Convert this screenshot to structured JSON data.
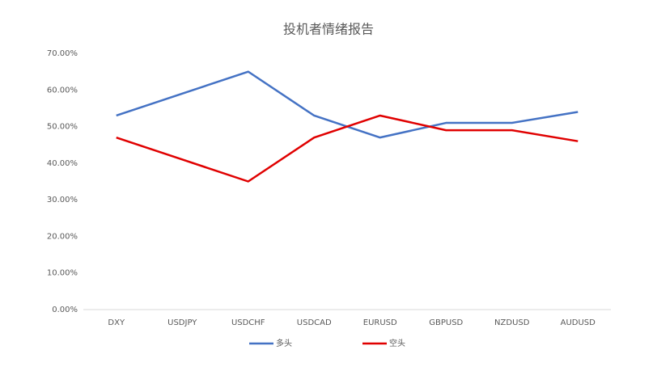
{
  "chart_data": {
    "type": "line",
    "title": "投机者情绪报告",
    "categories": [
      "DXY",
      "USDJPY",
      "USDCHF",
      "USDCAD",
      "EURUSD",
      "GBPUSD",
      "NZDUSD",
      "AUDUSD"
    ],
    "series": [
      {
        "name": "多头",
        "color": "#4472c4",
        "values": [
          53,
          59,
          65,
          53,
          47,
          51,
          51,
          54
        ]
      },
      {
        "name": "空头",
        "color": "#e00000",
        "values": [
          47,
          41,
          35,
          47,
          53,
          49,
          49,
          46
        ]
      }
    ],
    "ylim": [
      0,
      70
    ],
    "yticks": [
      {
        "value": 0,
        "label": "0.00%"
      },
      {
        "value": 10,
        "label": "10.00%"
      },
      {
        "value": 20,
        "label": "20.00%"
      },
      {
        "value": 30,
        "label": "30.00%"
      },
      {
        "value": 40,
        "label": "40.00%"
      },
      {
        "value": 50,
        "label": "50.00%"
      },
      {
        "value": 60,
        "label": "60.00%"
      },
      {
        "value": 70,
        "label": "70.00%"
      }
    ],
    "grid": false,
    "legend": "bottom"
  }
}
